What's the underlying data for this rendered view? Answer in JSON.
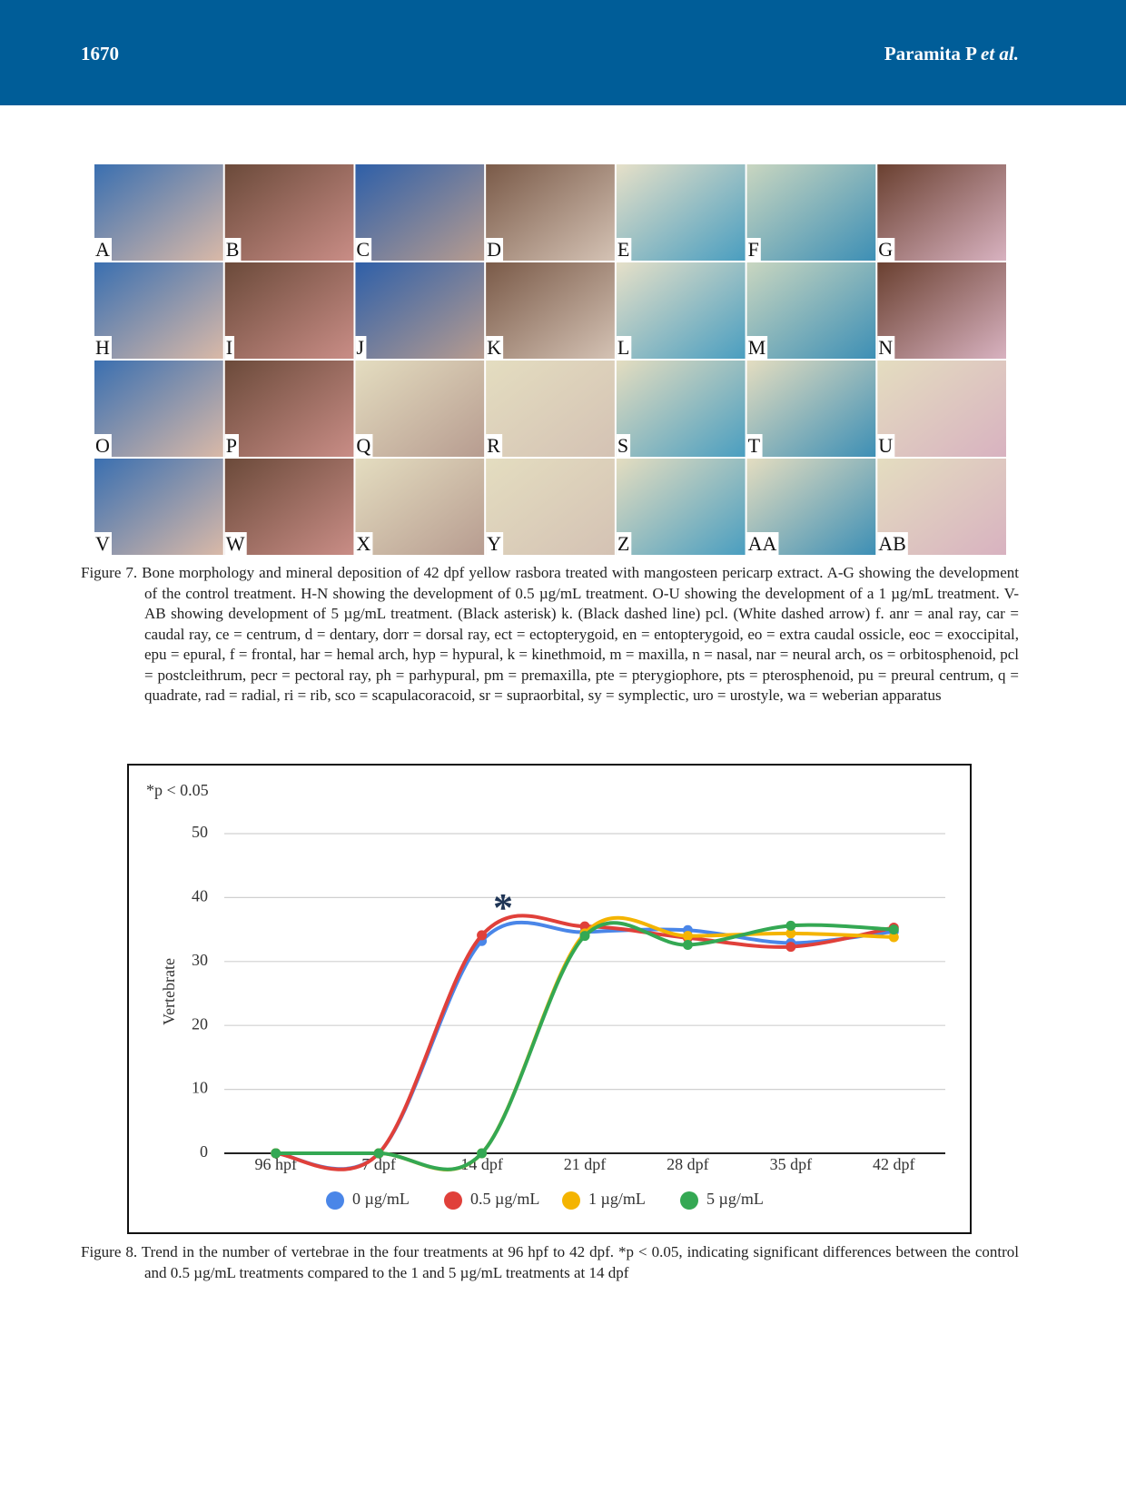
{
  "header": {
    "page_number": "1670",
    "author": "Paramita P",
    "author_suffix": "et al."
  },
  "figure7": {
    "panels": [
      "A",
      "B",
      "C",
      "D",
      "E",
      "F",
      "G",
      "H",
      "I",
      "J",
      "K",
      "L",
      "M",
      "N",
      "O",
      "P",
      "Q",
      "R",
      "S",
      "T",
      "U",
      "V",
      "W",
      "X",
      "Y",
      "Z",
      "AA",
      "AB"
    ],
    "caption": "Figure 7. Bone morphology and mineral deposition of 42 dpf yellow rasbora treated with mangosteen pericarp extract. A-G showing the development of the control treatment. H-N showing the development of 0.5 µg/mL treatment. O-U showing the development of a 1 µg/mL treatment. V-AB showing development of 5 µg/mL treatment. (Black asterisk) k. (Black dashed line) pcl. (White dashed arrow) f. anr = anal ray, car = caudal ray, ce = centrum, d = dentary, dorr = dorsal ray, ect = ectopterygoid, en = entopterygoid, eo = extra caudal ossicle, eoc = exoccipital, epu = epural, f = frontal, har = hemal arch, hyp = hypural, k = kinethmoid, m = maxilla, n = nasal, nar = neural arch, os = orbitosphenoid, pcl = postcleithrum, pecr = pectoral ray, ph = parhypural, pm = premaxilla, pte = pterygiophore, pts = pterosphenoid, pu = preural centrum, q = quadrate, rad = radial, ri = rib, sco = scapulacoracoid, sr = supraorbital, sy = symplectic, uro = urostyle, wa = weberian apparatus"
  },
  "chart_data": {
    "type": "line",
    "note": "*p < 0.05",
    "star": "*",
    "y_label": "Vertebrate",
    "categories": [
      "96 hpf",
      "7 dpf",
      "14 dpf",
      "21 dpf",
      "28 dpf",
      "35 dpf",
      "42 dpf"
    ],
    "series": [
      {
        "name": "0 µg/mL",
        "color": "#4a86e8",
        "values": [
          0,
          0,
          33.2,
          34.6,
          34.9,
          32.9,
          34.7
        ]
      },
      {
        "name": "0.5 µg/mL",
        "color": "#e0403a",
        "values": [
          0,
          0,
          34.1,
          35.5,
          33.7,
          32.3,
          35.3
        ]
      },
      {
        "name": "1 µg/mL",
        "color": "#f4b400",
        "values": [
          0,
          0,
          0,
          34.4,
          34.0,
          34.4,
          33.8
        ]
      },
      {
        "name": "5 µg/mL",
        "color": "#34a853",
        "values": [
          0,
          0,
          0,
          34.0,
          32.6,
          35.6,
          35.0
        ]
      }
    ],
    "ylim": [
      0,
      50
    ],
    "yticks": [
      0,
      10,
      20,
      30,
      40,
      50
    ],
    "grid": true,
    "smooth": true,
    "legend": "bottom"
  },
  "figure8_caption": "Figure 8. Trend in the number of vertebrae in the four treatments at 96 hpf to 42 dpf. *p < 0.05, indicating significant differences between the control and 0.5 µg/mL treatments compared to the 1 and 5 µg/mL treatments at 14 dpf"
}
